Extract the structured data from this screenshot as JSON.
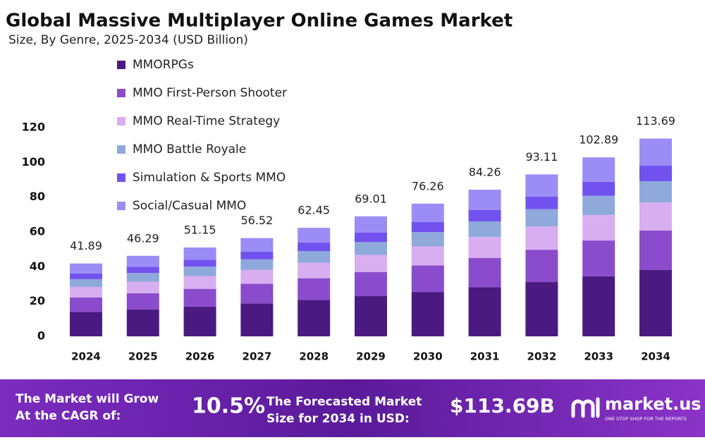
{
  "chart_data": {
    "type": "stacked_bar",
    "title": "Global Massive Multiplayer Online Games Market",
    "subtitle": "Size, By Genre, 2025-2034 (USD Billion)",
    "categories": [
      "2024",
      "2025",
      "2026",
      "2027",
      "2028",
      "2029",
      "2030",
      "2031",
      "2032",
      "2033",
      "2034"
    ],
    "series": [
      {
        "name": "MMORPGs",
        "color": "#4b1a80",
        "values": [
          14.0,
          15.5,
          17.1,
          18.9,
          20.9,
          23.1,
          25.5,
          28.2,
          31.2,
          34.5,
          38.1
        ]
      },
      {
        "name": "MMO First-Person Shooter",
        "color": "#8a4ccc",
        "values": [
          8.4,
          9.3,
          10.2,
          11.3,
          12.5,
          13.8,
          15.3,
          16.9,
          18.6,
          20.6,
          22.7
        ]
      },
      {
        "name": "MMO Real-Time Strategy",
        "color": "#d9aef0",
        "values": [
          6.0,
          6.6,
          7.3,
          8.1,
          8.9,
          9.9,
          10.9,
          12.0,
          13.3,
          14.7,
          16.2
        ]
      },
      {
        "name": "MMO Battle Royale",
        "color": "#8fa9dc",
        "values": [
          4.5,
          5.0,
          5.5,
          6.0,
          6.7,
          7.4,
          8.2,
          9.0,
          10.0,
          11.0,
          12.2
        ]
      },
      {
        "name": "Simulation & Sports MMO",
        "color": "#7152ee",
        "values": [
          3.3,
          3.6,
          4.0,
          4.4,
          4.9,
          5.4,
          5.9,
          6.6,
          7.3,
          8.0,
          8.9
        ]
      },
      {
        "name": "Social/Casual MMO",
        "color": "#9c8cf6",
        "values": [
          5.7,
          6.3,
          7.0,
          7.8,
          8.5,
          9.4,
          10.5,
          11.6,
          12.7,
          14.1,
          15.6
        ]
      }
    ],
    "totals": [
      41.89,
      46.29,
      51.15,
      56.52,
      62.45,
      69.01,
      76.26,
      84.26,
      93.11,
      102.89,
      113.69
    ],
    "ylim": [
      0,
      120
    ],
    "yticks": [
      0,
      20,
      40,
      60,
      80,
      100,
      120
    ],
    "grid": false
  },
  "footer": {
    "cagr_text": [
      "The Market will Grow",
      "At the CAGR of:"
    ],
    "cagr": "10.5%",
    "forecast_text": [
      "The Forecasted Market",
      "Size for 2034 in USD:"
    ],
    "forecast": "$113.69B",
    "brand": "market.us",
    "tagline": "ONE STOP SHOP FOR THE REPORTS"
  }
}
